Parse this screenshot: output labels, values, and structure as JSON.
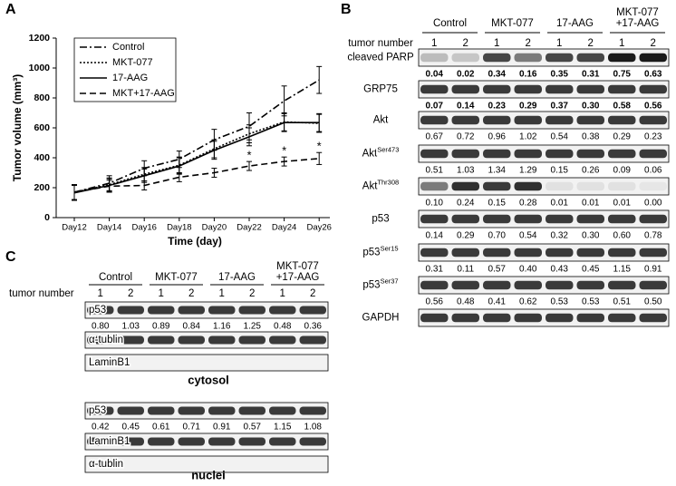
{
  "chart_data": {
    "type": "line",
    "panel": "A",
    "ylabel": "Tumor volume (mm³)",
    "xlabel": "Time (day)",
    "categories": [
      "Day12",
      "Day14",
      "Day16",
      "Day18",
      "Day20",
      "Day22",
      "Day24",
      "Day26"
    ],
    "ylim": [
      0,
      1200
    ],
    "yticks": [
      0,
      200,
      400,
      600,
      800,
      1000,
      1200
    ],
    "series": [
      {
        "name": "Control",
        "color": "#000000",
        "dash": "dashdot",
        "values": [
          170,
          230,
          330,
          390,
          520,
          610,
          780,
          920
        ],
        "errors": [
          50,
          50,
          50,
          55,
          70,
          90,
          100,
          90
        ]
      },
      {
        "name": "MKT-077",
        "color": "#000000",
        "dash": "dotted",
        "values": [
          170,
          220,
          290,
          350,
          460,
          560,
          640,
          630
        ],
        "errors": [
          50,
          45,
          45,
          55,
          60,
          60,
          60,
          60
        ]
      },
      {
        "name": "17-AAG",
        "color": "#000000",
        "dash": "solid",
        "values": [
          165,
          215,
          280,
          345,
          450,
          540,
          635,
          635
        ],
        "errors": [
          50,
          45,
          45,
          55,
          60,
          60,
          60,
          60
        ]
      },
      {
        "name": "MKT+17-AAG",
        "color": "#000000",
        "dash": "dashed",
        "values": [
          170,
          210,
          215,
          270,
          300,
          345,
          375,
          395
        ],
        "errors": [
          50,
          40,
          30,
          30,
          30,
          30,
          30,
          40
        ],
        "markers": [
          null,
          null,
          null,
          null,
          null,
          "*",
          "*",
          "*"
        ]
      }
    ]
  },
  "panel_b": {
    "label": "B",
    "groups": [
      [
        "Control"
      ],
      [
        "MKT-077"
      ],
      [
        "17-AAG"
      ],
      [
        "MKT-077",
        "+17-AAG"
      ]
    ],
    "lane_header": "tumor number",
    "lanes": [
      "1",
      "2",
      "1",
      "2",
      "1",
      "2",
      "1",
      "2"
    ],
    "rows": [
      {
        "name": "cleaved PARP",
        "bold": true,
        "values": [
          "0.04",
          "0.02",
          "0.34",
          "0.16",
          "0.35",
          "0.31",
          "0.75",
          "0.63"
        ]
      },
      {
        "name": "GRP75",
        "bold": true,
        "values": [
          "0.07",
          "0.14",
          "0.23",
          "0.29",
          "0.37",
          "0.30",
          "0.58",
          "0.56"
        ]
      },
      {
        "name": "Akt",
        "values": [
          "0.67",
          "0.72",
          "0.96",
          "1.02",
          "0.54",
          "0.38",
          "0.29",
          "0.23"
        ]
      },
      {
        "name": "Akt",
        "sup": "Ser473",
        "values": [
          "0.51",
          "1.03",
          "1.34",
          "1.29",
          "0.15",
          "0.26",
          "0.09",
          "0.06"
        ]
      },
      {
        "name": "Akt",
        "sup": "Thr308",
        "values": [
          "0.10",
          "0.24",
          "0.15",
          "0.28",
          "0.01",
          "0.01",
          "0.01",
          "0.00"
        ]
      },
      {
        "name": "p53",
        "values": [
          "0.14",
          "0.29",
          "0.70",
          "0.54",
          "0.32",
          "0.30",
          "0.60",
          "0.78"
        ]
      },
      {
        "name": "p53",
        "sup": "Ser15",
        "values": [
          "0.31",
          "0.11",
          "0.57",
          "0.40",
          "0.43",
          "0.45",
          "1.15",
          "0.91"
        ]
      },
      {
        "name": "p53",
        "sup": "Ser37",
        "values": [
          "0.56",
          "0.48",
          "0.41",
          "0.62",
          "0.53",
          "0.53",
          "0.51",
          "0.50"
        ]
      },
      {
        "name": "GAPDH"
      }
    ]
  },
  "panel_c": {
    "label": "C",
    "groups": [
      [
        "Control"
      ],
      [
        "MKT-077"
      ],
      [
        "17-AAG"
      ],
      [
        "MKT-077",
        "+17-AAG"
      ]
    ],
    "lane_header": "tumor number",
    "lanes": [
      "1",
      "2",
      "1",
      "2",
      "1",
      "2",
      "1",
      "2"
    ],
    "sections": [
      {
        "caption": "cytosol",
        "rows": [
          {
            "name": "p53",
            "values": [
              "0.80",
              "1.03",
              "0.89",
              "0.84",
              "1.16",
              "1.25",
              "0.48",
              "0.36"
            ]
          },
          {
            "name": "α-tublin"
          },
          {
            "name": "LaminB1"
          }
        ]
      },
      {
        "caption": "nuclei",
        "rows": [
          {
            "name": "p53",
            "values": [
              "0.42",
              "0.45",
              "0.61",
              "0.71",
              "0.91",
              "0.57",
              "1.15",
              "1.08"
            ]
          },
          {
            "name": "LaminB1"
          },
          {
            "name": "α-tublin"
          }
        ]
      }
    ]
  }
}
